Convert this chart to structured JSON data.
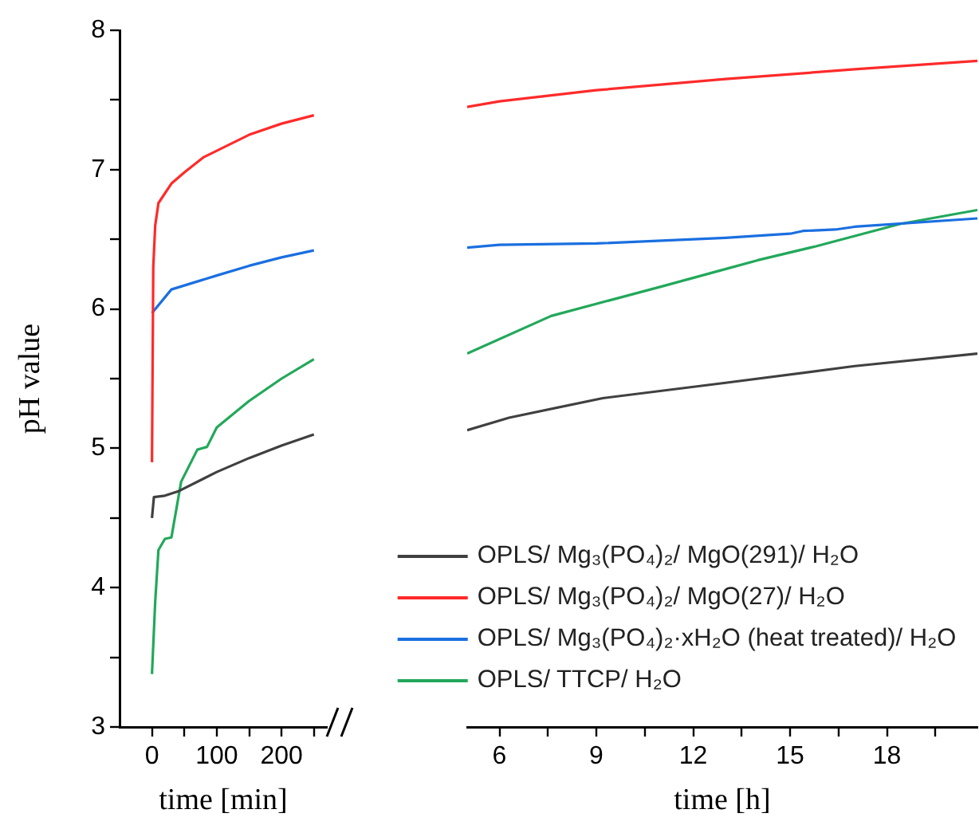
{
  "chart_data": [
    {
      "type": "line",
      "xlabel": "time [min]",
      "ylabel": "pH value",
      "marker": "none",
      "xlim": [
        -50,
        270
      ],
      "xticks": [
        0,
        {
          "value": 50,
          "label": null
        },
        100,
        {
          "value": 150,
          "label": null
        },
        200,
        {
          "value": 250,
          "label": null
        }
      ],
      "ylim": [
        3,
        8
      ],
      "yticks": [
        3,
        {
          "value": 3.5,
          "label": null
        },
        4,
        {
          "value": 4.5,
          "label": null
        },
        5,
        {
          "value": 5.5,
          "label": null
        },
        6,
        {
          "value": 6.5,
          "label": null
        },
        7,
        {
          "value": 7.5,
          "label": null
        },
        8
      ],
      "series": [
        {
          "color": "#404040",
          "x": [
            0,
            3,
            20,
            40,
            100,
            150,
            200,
            250
          ],
          "values": [
            4.5,
            4.65,
            4.66,
            4.69,
            4.83,
            4.93,
            5.02,
            5.1
          ]
        },
        {
          "color": "#ff2a2a",
          "x": [
            0,
            2,
            5,
            10,
            30,
            50,
            80,
            150,
            200,
            250
          ],
          "values": [
            4.9,
            6.3,
            6.6,
            6.76,
            6.9,
            6.98,
            7.09,
            7.25,
            7.33,
            7.39
          ]
        },
        {
          "color": "#1a6fe0",
          "x": [
            0,
            30,
            100,
            150,
            200,
            250
          ],
          "values": [
            5.97,
            6.14,
            6.24,
            6.31,
            6.37,
            6.42
          ]
        },
        {
          "color": "#22a85a",
          "x": [
            0,
            5,
            10,
            20,
            30,
            45,
            70,
            85,
            100,
            150,
            200,
            250
          ],
          "values": [
            3.38,
            3.9,
            4.27,
            4.35,
            4.36,
            4.76,
            4.99,
            5.01,
            5.15,
            5.34,
            5.5,
            5.64
          ]
        }
      ]
    },
    {
      "type": "line",
      "xlabel": "time [h]",
      "marker": "none",
      "legend": "bottom",
      "tick_labels": "x",
      "xlim": [
        5,
        20.8
      ],
      "xticks": [
        6,
        {
          "value": 7.5,
          "label": null
        },
        9,
        {
          "value": 10.5,
          "label": null
        },
        12,
        {
          "value": 13.5,
          "label": null
        },
        15,
        {
          "value": 16.5,
          "label": null
        },
        18,
        {
          "value": 19.5,
          "label": null
        }
      ],
      "ylim": [
        3,
        8
      ],
      "series": [
        {
          "name": "OPLS/ Mg₃(PO₄)₂/ MgO(291)/ H₂O",
          "color": "#404040",
          "x": [
            5,
            6.3,
            9.2,
            13,
            17,
            20.8
          ],
          "values": [
            5.13,
            5.22,
            5.36,
            5.47,
            5.59,
            5.68
          ]
        },
        {
          "name": "OPLS/ Mg₃(PO₄)₂/ MgO(27)/ H₂O",
          "color": "#ff2a2a",
          "x": [
            5,
            6,
            9,
            13,
            17,
            20.8
          ],
          "values": [
            7.45,
            7.49,
            7.57,
            7.65,
            7.72,
            7.78
          ]
        },
        {
          "name": "OPLS/ Mg₃(PO₄)₂·xH₂O (heat treated)/ H₂O",
          "color": "#1a6fe0",
          "x": [
            5,
            6,
            9,
            13,
            15,
            15.4,
            16.4,
            17,
            20.8
          ],
          "values": [
            6.44,
            6.46,
            6.47,
            6.51,
            6.54,
            6.56,
            6.57,
            6.59,
            6.65
          ]
        },
        {
          "name": "OPLS/ TTCP/ H₂O",
          "color": "#22a85a",
          "x": [
            5,
            7.6,
            11,
            12.9,
            14,
            15.8,
            18.4,
            20.8
          ],
          "values": [
            5.68,
            5.95,
            6.16,
            6.28,
            6.35,
            6.45,
            6.61,
            6.71
          ]
        }
      ]
    }
  ]
}
